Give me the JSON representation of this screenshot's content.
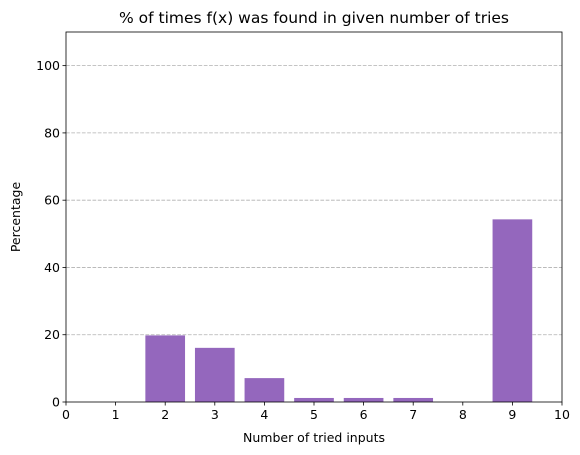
{
  "chart_data": {
    "type": "bar",
    "title": "% of times f(x) was found in given number of tries",
    "xlabel": "Number of tried inputs",
    "ylabel": "Percentage",
    "x": [
      1,
      2,
      3,
      4,
      5,
      6,
      7,
      8,
      9
    ],
    "values": [
      0,
      19.8,
      16.1,
      7.1,
      1.2,
      1.2,
      1.2,
      0,
      54.3
    ],
    "xlim": [
      0,
      10
    ],
    "ylim": [
      0,
      110
    ],
    "xticks": [
      "0",
      "1",
      "2",
      "3",
      "4",
      "5",
      "6",
      "7",
      "8",
      "9",
      "10"
    ],
    "yticks": [
      "0",
      "20",
      "40",
      "60",
      "80",
      "100"
    ],
    "grid": "y-axis, dashed",
    "bar_color": "#9467bd",
    "legend": "none"
  }
}
